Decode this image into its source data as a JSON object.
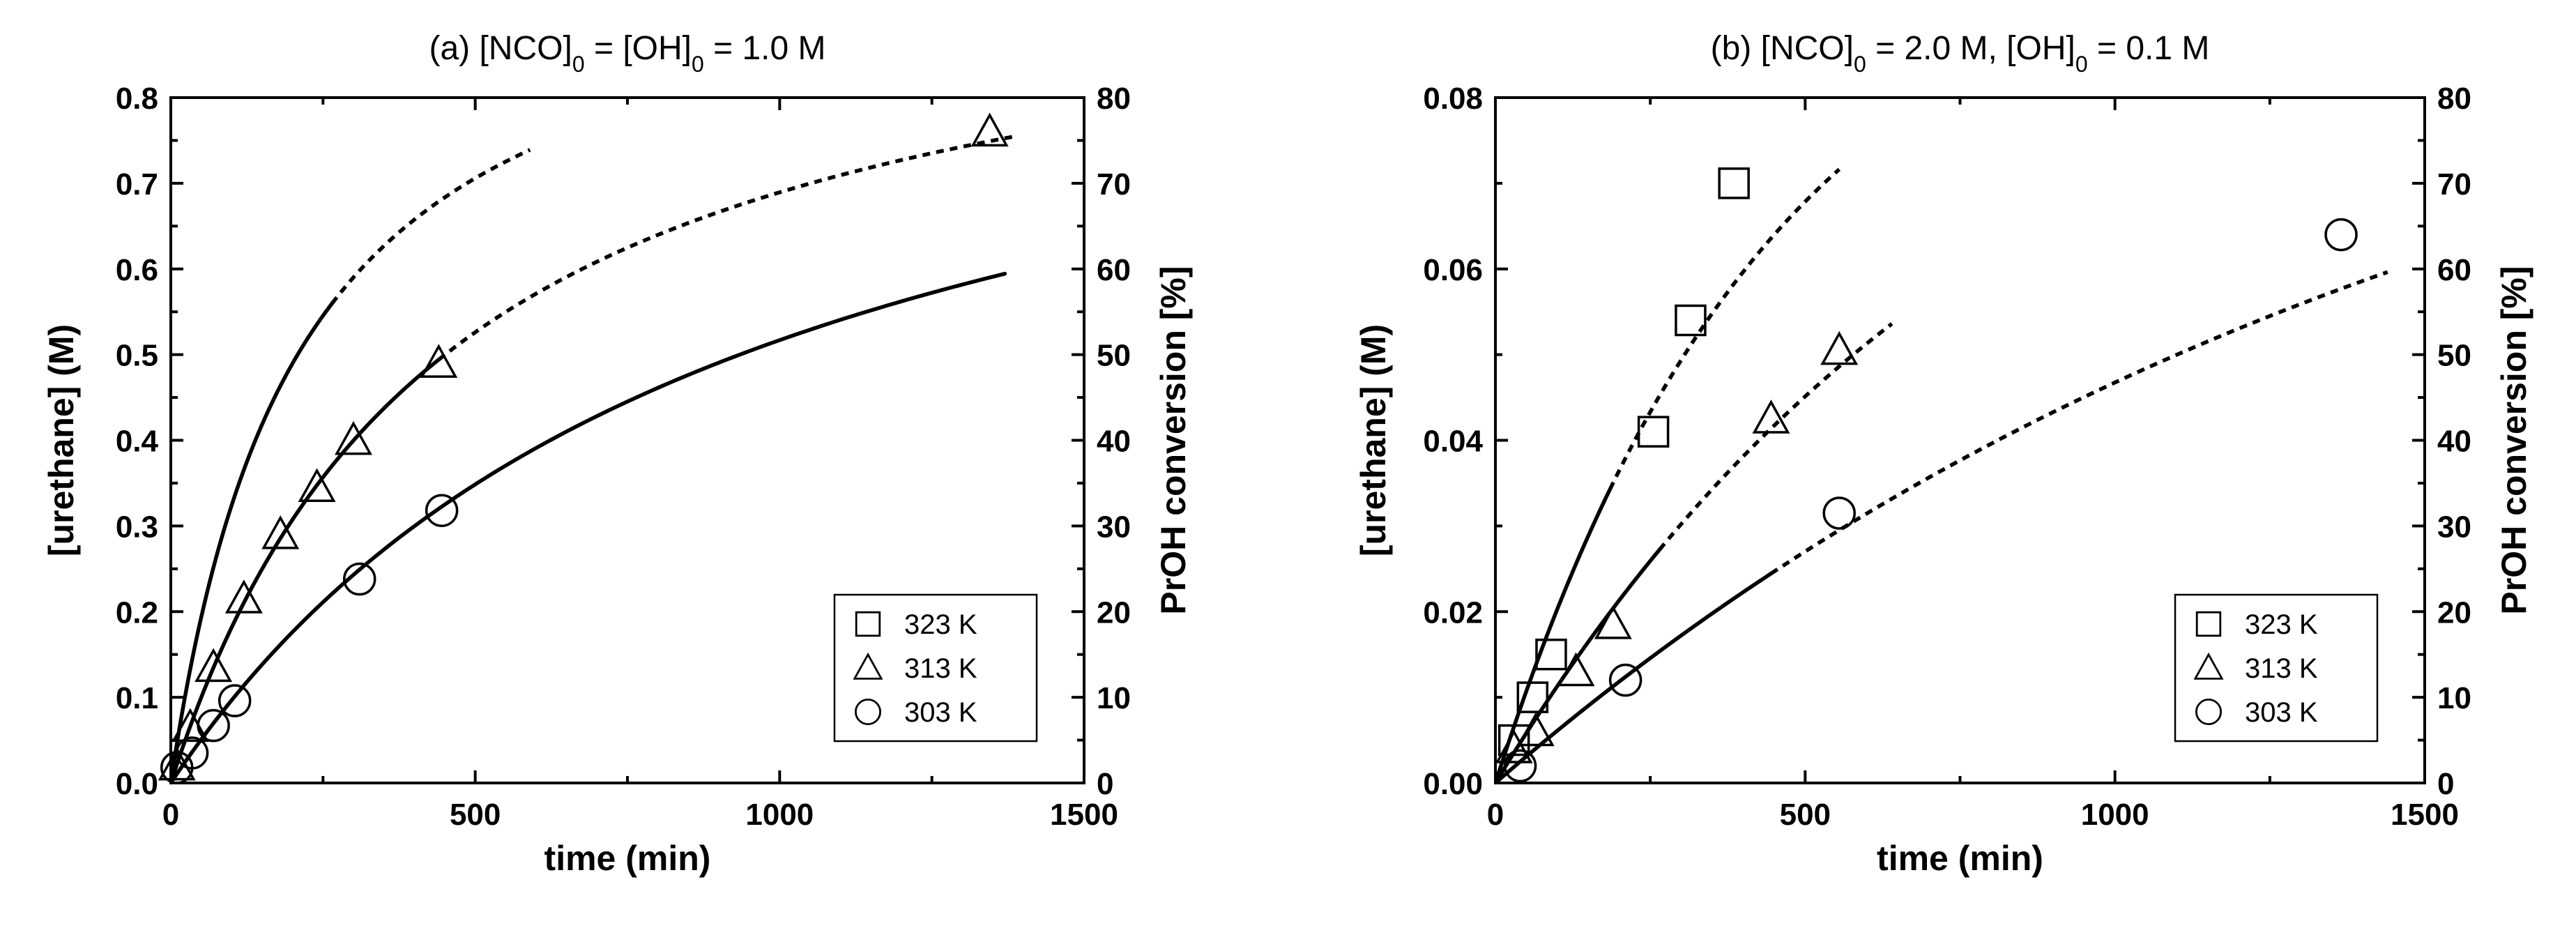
{
  "chart_data": [
    {
      "type": "scatter",
      "title_parts": [
        "(a)  [NCO]",
        "0",
        " = [OH]",
        "0",
        " = 1.0 M"
      ],
      "xlabel": "time (min)",
      "ylabel": "[urethane] (M)",
      "y2label": "PrOH conversion [%]",
      "xlim": [
        0,
        1500
      ],
      "ylim": [
        0,
        0.8
      ],
      "y2lim": [
        0,
        80
      ],
      "xticks": [
        0,
        500,
        1000,
        1500
      ],
      "xtick_labels": [
        "0",
        "500",
        "1000",
        "1500"
      ],
      "yticks": [
        0,
        0.1,
        0.2,
        0.3,
        0.4,
        0.5,
        0.6,
        0.7,
        0.8
      ],
      "ytick_labels": [
        "0.0",
        "0.1",
        "0.2",
        "0.3",
        "0.4",
        "0.5",
        "0.6",
        "0.7",
        "0.8"
      ],
      "y2ticks": [
        0,
        10,
        20,
        30,
        40,
        50,
        60,
        70,
        80
      ],
      "y2tick_labels": [
        "0",
        "10",
        "20",
        "30",
        "40",
        "50",
        "60",
        "70",
        "80"
      ],
      "grid": false,
      "legend_position": "bottom-right",
      "series": [
        {
          "name": "323 K",
          "marker": "square",
          "x": [],
          "y": [],
          "fit_solid": {
            "k": 0.0048,
            "c0": 1.0,
            "x_end": 265
          },
          "fit_dashed": {
            "k": 0.0048,
            "c0": 1.0,
            "x_end": 590
          }
        },
        {
          "name": "313 K",
          "marker": "triangle",
          "x": [
            10,
            32,
            70,
            120,
            180,
            240,
            300,
            440,
            1345
          ],
          "y": [
            0.02,
            0.065,
            0.135,
            0.215,
            0.29,
            0.345,
            0.4,
            0.49,
            0.76
          ],
          "fit_solid": {
            "k": 0.00222,
            "c0": 1.0,
            "x_end": 440
          },
          "fit_dashed": {
            "k": 0.00222,
            "c0": 1.0,
            "x_end": 1390
          }
        },
        {
          "name": "303 K",
          "marker": "circle",
          "x": [
            10,
            35,
            70,
            105,
            310,
            445
          ],
          "y": [
            0.018,
            0.035,
            0.067,
            0.096,
            0.238,
            0.318
          ],
          "fit_solid": {
            "k": 0.00107,
            "c0": 1.0,
            "x_end": 1370
          }
        }
      ]
    },
    {
      "type": "scatter",
      "title_parts": [
        "(b)  [NCO]",
        "0",
        " = 2.0 M, [OH]",
        "0",
        " = 0.1 M"
      ],
      "xlabel": "time (min)",
      "ylabel": "[urethane] (M)",
      "y2label": "PrOH conversion [%]",
      "xlim": [
        0,
        1500
      ],
      "ylim": [
        0,
        0.08
      ],
      "y2lim": [
        0,
        80
      ],
      "xticks": [
        0,
        500,
        1000,
        1500
      ],
      "xtick_labels": [
        "0",
        "500",
        "1000",
        "1500"
      ],
      "yticks": [
        0,
        0.02,
        0.04,
        0.06,
        0.08
      ],
      "ytick_labels": [
        "0.00",
        "0.02",
        "0.04",
        "0.06",
        "0.08"
      ],
      "y2ticks": [
        0,
        10,
        20,
        30,
        40,
        50,
        60,
        70,
        80
      ],
      "y2tick_labels": [
        "0",
        "10",
        "20",
        "30",
        "40",
        "50",
        "60",
        "70",
        "80"
      ],
      "grid": false,
      "legend_position": "bottom-right",
      "series": [
        {
          "name": "323 K",
          "marker": "square",
          "x": [
            30,
            60,
            90,
            255,
            315,
            385
          ],
          "y": [
            0.005,
            0.01,
            0.015,
            0.041,
            0.054,
            0.07
          ],
          "fit_solid": {
            "k": 0.00227,
            "c0": 0.1,
            "x_end": 185
          },
          "fit_dashed": {
            "k": 0.00227,
            "c0": 0.1,
            "x_end": 555
          }
        },
        {
          "name": "313 K",
          "marker": "triangle",
          "x": [
            30,
            65,
            130,
            190,
            445,
            555
          ],
          "y": [
            0.004,
            0.006,
            0.013,
            0.0185,
            0.0425,
            0.0505
          ],
          "fit_solid": {
            "k": 0.0012,
            "c0": 0.1,
            "x_end": 265
          },
          "fit_dashed": {
            "k": 0.0012,
            "c0": 0.1,
            "x_end": 640
          }
        },
        {
          "name": "303 K",
          "marker": "circle",
          "x": [
            40,
            210,
            555,
            1365
          ],
          "y": [
            0.002,
            0.012,
            0.0315,
            0.064
          ],
          "fit_solid": {
            "k": 0.00063,
            "c0": 0.1,
            "x_end": 445
          },
          "fit_dashed": {
            "k": 0.00063,
            "c0": 0.1,
            "x_end": 1440
          }
        }
      ]
    }
  ]
}
